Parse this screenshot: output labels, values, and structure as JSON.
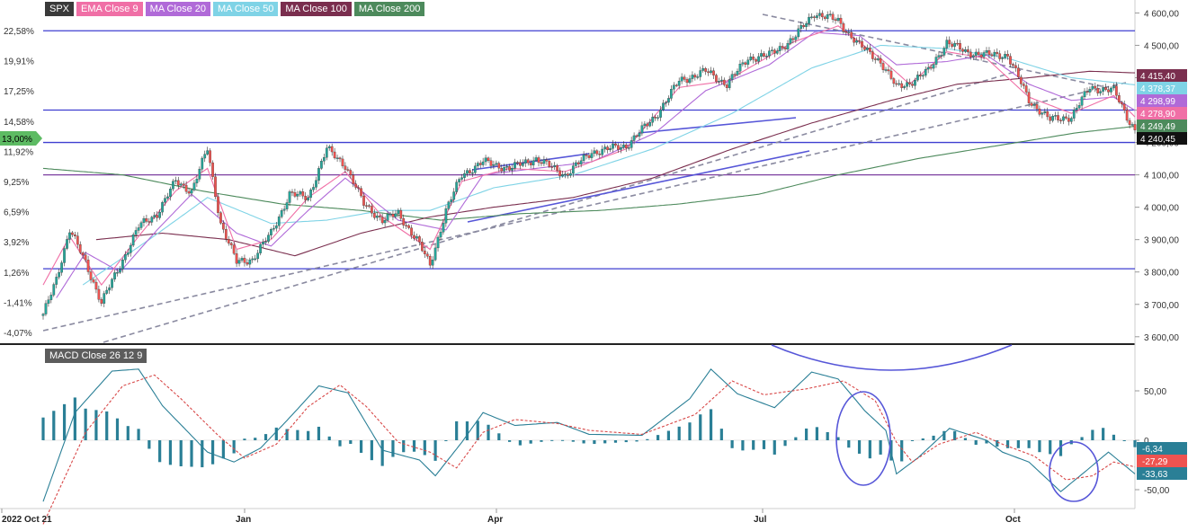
{
  "colors": {
    "up": "#26a69a",
    "down": "#ef5350",
    "ema9": "#f06fa6",
    "ma20": "#b06ad8",
    "ma50": "#7fd3e6",
    "ma100": "#7a2e4e",
    "ma200": "#4d8a5c",
    "level": "#3f3fd0",
    "trend": "#8a8aa0",
    "channel": "#5656d8",
    "macd": "#2a7f96",
    "signal": "#d84848",
    "hist": "#2a7f96"
  },
  "legend": [
    {
      "label": "SPX",
      "color": "#3a3a3a"
    },
    {
      "label": "EMA Close 9",
      "color": "#f06fa6"
    },
    {
      "label": "MA Close 20",
      "color": "#b06ad8"
    },
    {
      "label": "MA Close 50",
      "color": "#7fd3e6"
    },
    {
      "label": "MA Close 100",
      "color": "#7a2e4e"
    },
    {
      "label": "MA Close 200",
      "color": "#4d8a5c"
    }
  ],
  "macd_label": "MACD Close 26 12 9",
  "chart_data": [
    {
      "type": "candlestick",
      "title": "SPX",
      "x_ticks": [
        "2022 Oct 21",
        "Jan",
        "Apr",
        "Jul",
        "Oct"
      ],
      "y_right_ticks": [
        "3 600,00",
        "3 700,00",
        "3 800,00",
        "3 900,00",
        "4 000,00",
        "4 100,00",
        "4 200,00",
        "4 300,00",
        "4 400,00",
        "4 500,00",
        "4 600,00"
      ],
      "y_left_ticks": [
        "-4,07%",
        "-1,41%",
        "1,26%",
        "3,92%",
        "6,59%",
        "9,25%",
        "11,92%",
        "14,58%",
        "17,25%",
        "19,91%",
        "22,58%"
      ],
      "ylim": [
        3580,
        4640
      ],
      "current_pct": "13,00%",
      "horizontal_levels": [
        3810,
        4100,
        4200,
        4300,
        4545
      ],
      "price_labels": [
        {
          "label": "4 415,40",
          "color": "#7a2e4e",
          "value": 4415.4
        },
        {
          "label": "4 378,37",
          "color": "#7fd3e6",
          "value": 4378.37
        },
        {
          "label": "4 298,99",
          "color": "#b06ad8",
          "value": 4298.99
        },
        {
          "label": "4 278,90",
          "color": "#f06fa6",
          "value": 4278.9
        },
        {
          "label": "4 249,49",
          "color": "#4d8a5c",
          "value": 4249.49
        },
        {
          "label": "4 240,45",
          "color": "#111111",
          "value": 4240.45
        }
      ],
      "series": [
        {
          "name": "SPX",
          "anchors": [
            [
              0,
              3665
            ],
            [
              5,
              3780
            ],
            [
              10,
              3930
            ],
            [
              16,
              3830
            ],
            [
              22,
              3705
            ],
            [
              29,
              3820
            ],
            [
              36,
              3940
            ],
            [
              43,
              3980
            ],
            [
              50,
              4080
            ],
            [
              56,
              4050
            ],
            [
              62,
              4180
            ],
            [
              67,
              3950
            ],
            [
              73,
              3830
            ],
            [
              79,
              3840
            ],
            [
              86,
              3920
            ],
            [
              93,
              4040
            ],
            [
              100,
              4030
            ],
            [
              107,
              4180
            ],
            [
              114,
              4130
            ],
            [
              121,
              4010
            ],
            [
              128,
              3960
            ],
            [
              134,
              3980
            ],
            [
              141,
              3900
            ],
            [
              146,
              3820
            ],
            [
              152,
              3990
            ],
            [
              158,
              4100
            ],
            [
              166,
              4140
            ],
            [
              176,
              4120
            ],
            [
              186,
              4150
            ],
            [
              197,
              4100
            ],
            [
              207,
              4170
            ],
            [
              220,
              4190
            ],
            [
              231,
              4280
            ],
            [
              240,
              4390
            ],
            [
              250,
              4420
            ],
            [
              258,
              4380
            ],
            [
              266,
              4460
            ],
            [
              274,
              4470
            ],
            [
              283,
              4520
            ],
            [
              291,
              4600
            ],
            [
              300,
              4575
            ],
            [
              308,
              4500
            ],
            [
              316,
              4450
            ],
            [
              322,
              4370
            ],
            [
              327,
              4385
            ],
            [
              334,
              4420
            ],
            [
              341,
              4510
            ],
            [
              348,
              4480
            ],
            [
              356,
              4470
            ],
            [
              364,
              4470
            ],
            [
              372,
              4330
            ],
            [
              380,
              4270
            ],
            [
              388,
              4280
            ],
            [
              395,
              4370
            ],
            [
              404,
              4360
            ],
            [
              410,
              4265
            ],
            [
              412,
              4240
            ]
          ]
        },
        {
          "name": "EMA Close 9",
          "anchors": [
            [
              0,
              3760
            ],
            [
              10,
              3910
            ],
            [
              22,
              3760
            ],
            [
              36,
              3910
            ],
            [
              50,
              4050
            ],
            [
              62,
              4120
            ],
            [
              73,
              3870
            ],
            [
              86,
              3900
            ],
            [
              100,
              4030
            ],
            [
              114,
              4110
            ],
            [
              128,
              3970
            ],
            [
              146,
              3870
            ],
            [
              158,
              4080
            ],
            [
              176,
              4120
            ],
            [
              197,
              4110
            ],
            [
              220,
              4180
            ],
            [
              240,
              4370
            ],
            [
              258,
              4390
            ],
            [
              283,
              4510
            ],
            [
              300,
              4560
            ],
            [
              316,
              4460
            ],
            [
              327,
              4380
            ],
            [
              341,
              4480
            ],
            [
              356,
              4460
            ],
            [
              372,
              4340
            ],
            [
              388,
              4290
            ],
            [
              404,
              4345
            ],
            [
              412,
              4279
            ]
          ]
        },
        {
          "name": "MA Close 20",
          "anchors": [
            [
              5,
              3720
            ],
            [
              16,
              3860
            ],
            [
              29,
              3800
            ],
            [
              43,
              3930
            ],
            [
              56,
              4040
            ],
            [
              73,
              3920
            ],
            [
              86,
              3880
            ],
            [
              100,
              3990
            ],
            [
              114,
              4090
            ],
            [
              134,
              3960
            ],
            [
              152,
              3930
            ],
            [
              166,
              4100
            ],
            [
              186,
              4120
            ],
            [
              207,
              4140
            ],
            [
              231,
              4230
            ],
            [
              250,
              4360
            ],
            [
              274,
              4440
            ],
            [
              291,
              4540
            ],
            [
              308,
              4530
            ],
            [
              322,
              4440
            ],
            [
              341,
              4450
            ],
            [
              356,
              4470
            ],
            [
              372,
              4380
            ],
            [
              388,
              4330
            ],
            [
              404,
              4340
            ],
            [
              412,
              4299
            ]
          ]
        },
        {
          "name": "MA Close 50",
          "anchors": [
            [
              15,
              3760
            ],
            [
              40,
              3900
            ],
            [
              62,
              4030
            ],
            [
              86,
              3950
            ],
            [
              107,
              3960
            ],
            [
              128,
              3990
            ],
            [
              146,
              3990
            ],
            [
              170,
              4060
            ],
            [
              200,
              4100
            ],
            [
              230,
              4180
            ],
            [
              260,
              4290
            ],
            [
              290,
              4430
            ],
            [
              316,
              4500
            ],
            [
              341,
              4490
            ],
            [
              364,
              4460
            ],
            [
              388,
              4400
            ],
            [
              412,
              4378
            ]
          ]
        },
        {
          "name": "MA Close 100",
          "anchors": [
            [
              20,
              3900
            ],
            [
              45,
              3920
            ],
            [
              70,
              3900
            ],
            [
              95,
              3850
            ],
            [
              120,
              3920
            ],
            [
              146,
              3970
            ],
            [
              170,
              4000
            ],
            [
              200,
              4030
            ],
            [
              230,
              4090
            ],
            [
              260,
              4180
            ],
            [
              290,
              4260
            ],
            [
              320,
              4330
            ],
            [
              345,
              4380
            ],
            [
              372,
              4400
            ],
            [
              395,
              4420
            ],
            [
              412,
              4415
            ]
          ]
        },
        {
          "name": "MA Close 200",
          "anchors": [
            [
              0,
              4120
            ],
            [
              30,
              4100
            ],
            [
              60,
              4050
            ],
            [
              90,
              4010
            ],
            [
              120,
              3990
            ],
            [
              150,
              3960
            ],
            [
              180,
              3980
            ],
            [
              210,
              3990
            ],
            [
              240,
              4010
            ],
            [
              270,
              4040
            ],
            [
              300,
              4100
            ],
            [
              330,
              4150
            ],
            [
              360,
              4190
            ],
            [
              390,
              4230
            ],
            [
              412,
              4250
            ]
          ]
        }
      ]
    },
    {
      "type": "line",
      "title": "MACD Close 26 12 9",
      "y_ticks": [
        "50,00",
        "0",
        "-50,00"
      ],
      "ylim": [
        -85,
        85
      ],
      "value_labels": [
        {
          "label": "-6,34",
          "color": "#2a7f96",
          "value": -6.34
        },
        {
          "label": "-27,29",
          "color": "#ef5350",
          "value": -27.29
        },
        {
          "label": "-33,63",
          "color": "#2a7f96",
          "value": -33.63
        }
      ],
      "series": [
        {
          "name": "MACD",
          "anchors": [
            [
              0,
              -62
            ],
            [
              12,
              28
            ],
            [
              26,
              70
            ],
            [
              36,
              72
            ],
            [
              45,
              35
            ],
            [
              62,
              -12
            ],
            [
              72,
              -22
            ],
            [
              82,
              -8
            ],
            [
              92,
              20
            ],
            [
              104,
              55
            ],
            [
              115,
              48
            ],
            [
              128,
              -10
            ],
            [
              142,
              -20
            ],
            [
              148,
              -36
            ],
            [
              158,
              -2
            ],
            [
              166,
              28
            ],
            [
              178,
              15
            ],
            [
              194,
              18
            ],
            [
              206,
              6
            ],
            [
              226,
              5
            ],
            [
              244,
              42
            ],
            [
              252,
              72
            ],
            [
              262,
              47
            ],
            [
              276,
              33
            ],
            [
              290,
              69
            ],
            [
              300,
              62
            ],
            [
              310,
              30
            ],
            [
              318,
              10
            ],
            [
              322,
              -34
            ],
            [
              330,
              -18
            ],
            [
              342,
              12
            ],
            [
              356,
              0
            ],
            [
              362,
              -12
            ],
            [
              372,
              -22
            ],
            [
              384,
              -52
            ],
            [
              394,
              -30
            ],
            [
              402,
              -12
            ],
            [
              412,
              -34
            ]
          ]
        },
        {
          "name": "Signal",
          "anchors": [
            [
              0,
              -85
            ],
            [
              16,
              8
            ],
            [
              30,
              55
            ],
            [
              42,
              66
            ],
            [
              52,
              42
            ],
            [
              66,
              5
            ],
            [
              76,
              -18
            ],
            [
              88,
              -4
            ],
            [
              100,
              34
            ],
            [
              112,
              56
            ],
            [
              122,
              34
            ],
            [
              134,
              -2
            ],
            [
              146,
              -12
            ],
            [
              156,
              -28
            ],
            [
              166,
              8
            ],
            [
              178,
              21
            ],
            [
              194,
              17
            ],
            [
              206,
              10
            ],
            [
              226,
              6
            ],
            [
              246,
              26
            ],
            [
              260,
              60
            ],
            [
              272,
              46
            ],
            [
              288,
              52
            ],
            [
              302,
              60
            ],
            [
              314,
              40
            ],
            [
              322,
              -2
            ],
            [
              328,
              -22
            ],
            [
              338,
              -4
            ],
            [
              352,
              8
            ],
            [
              362,
              -4
            ],
            [
              374,
              -16
            ],
            [
              386,
              -40
            ],
            [
              396,
              -36
            ],
            [
              404,
              -22
            ],
            [
              412,
              -27
            ]
          ]
        }
      ]
    }
  ]
}
